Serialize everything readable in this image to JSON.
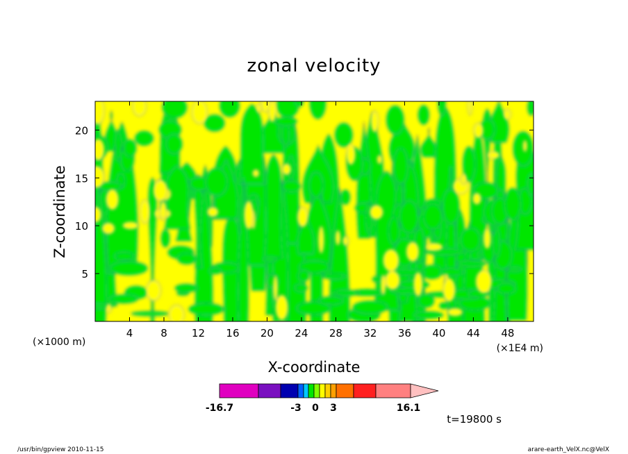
{
  "footer": {
    "left": "/usr/bin/gpview   2010-11-15",
    "right": "arare-earth_VelX.nc@VelX"
  },
  "chart_data": {
    "type": "heatmap",
    "title": "zonal velocity",
    "xlabel": "X-coordinate",
    "ylabel": "Z-coordinate",
    "x_unit_left": "(×1000 m)",
    "x_unit_right": "(×1E4 m)",
    "x_ticks": [
      "4",
      "8",
      "12",
      "16",
      "20",
      "24",
      "28",
      "32",
      "36",
      "40",
      "44",
      "48"
    ],
    "x_tick_values": [
      4,
      8,
      12,
      16,
      20,
      24,
      28,
      32,
      36,
      40,
      44,
      48
    ],
    "y_ticks": [
      "5",
      "10",
      "15",
      "20"
    ],
    "y_tick_values": [
      5,
      10,
      15,
      20
    ],
    "xlim": [
      0,
      51
    ],
    "ylim": [
      0,
      23
    ],
    "time_label": "t=19800 s",
    "field_colors": {
      "negative": "#00e600",
      "positive": "#ffff00",
      "contour": "#3030a0"
    },
    "colorbar": {
      "min_label": "-16.7",
      "max_label": "16.1",
      "tick_labels": [
        "-3",
        "0",
        "3"
      ],
      "bins": [
        {
          "color": "#e000c0",
          "width": 56
        },
        {
          "color": "#7a10c0",
          "width": 32
        },
        {
          "color": "#0000b0",
          "width": 25
        },
        {
          "color": "#0060ff",
          "width": 8
        },
        {
          "color": "#00c8ff",
          "width": 7
        },
        {
          "color": "#00e600",
          "width": 8
        },
        {
          "color": "#80ff00",
          "width": 8
        },
        {
          "color": "#ffff00",
          "width": 8
        },
        {
          "color": "#ffd000",
          "width": 8
        },
        {
          "color": "#ffa000",
          "width": 8
        },
        {
          "color": "#ff7000",
          "width": 25
        },
        {
          "color": "#ff2020",
          "width": 32
        },
        {
          "color": "#ff8080",
          "width": 50
        }
      ],
      "arrow_color": "#ffc0c0"
    }
  }
}
